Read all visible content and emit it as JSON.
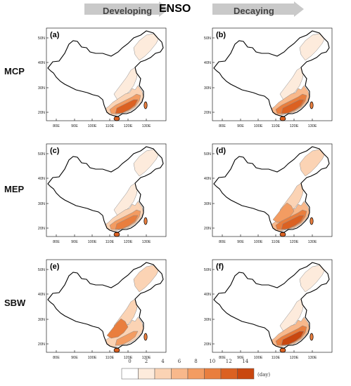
{
  "header": {
    "left_label": "Developing",
    "center_label": "ENSO",
    "right_label": "Decaying"
  },
  "rows": [
    {
      "label": "MCP"
    },
    {
      "label": "MEP"
    },
    {
      "label": "SBW"
    }
  ],
  "panels": [
    {
      "tag": "(a)"
    },
    {
      "tag": "(b)"
    },
    {
      "tag": "(c)"
    },
    {
      "tag": "(d)"
    },
    {
      "tag": "(e)"
    },
    {
      "tag": "(f)"
    }
  ],
  "axes": {
    "lat_ticks": [
      "20N",
      "30N",
      "40N",
      "50N"
    ],
    "lon_ticks": [
      "80E",
      "90E",
      "100E",
      "110E",
      "120E",
      "130E"
    ]
  },
  "colorbar": {
    "ticks": [
      "0",
      "2",
      "4",
      "6",
      "8",
      "10",
      "12",
      "14"
    ],
    "unit": "(day)",
    "colors": [
      "#ffffff",
      "#fdebdc",
      "#fbd3b4",
      "#f8b88b",
      "#f39c62",
      "#e97e3e",
      "#db6122",
      "#c9470f"
    ]
  }
}
